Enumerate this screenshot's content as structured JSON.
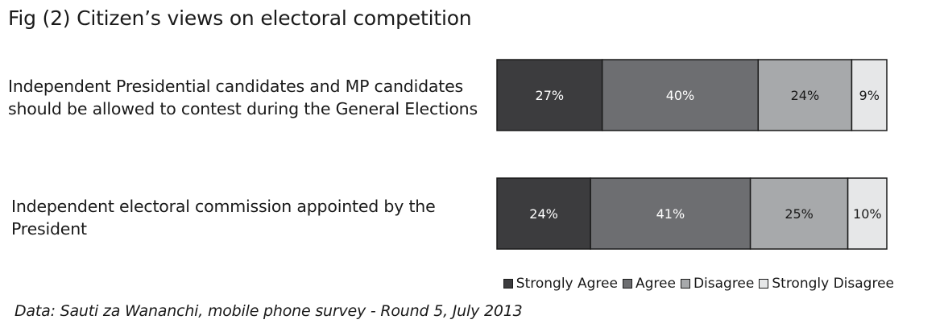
{
  "title": "Fig (2) Citizen’s views on electoral competition",
  "source": "Data: Sauti za Wananchi, mobile phone survey - Round 5, July 2013",
  "chart_data": {
    "type": "bar",
    "orientation": "horizontal",
    "stacked": true,
    "percent_stacked": true,
    "categories": [
      [
        "Independent Presidential candidates and MP candidates",
        "should be allowed to contest during the General Elections"
      ],
      [
        "Independent electoral commission appointed by the",
        "President"
      ]
    ],
    "series": [
      {
        "name": "Strongly Agree",
        "color": "#3c3c3e",
        "values": [
          27,
          24
        ],
        "labels": [
          "27%",
          "24%"
        ]
      },
      {
        "name": "Agree",
        "color": "#6d6e71",
        "values": [
          40,
          41
        ],
        "labels": [
          "40%",
          "41%"
        ]
      },
      {
        "name": "Disagree",
        "color": "#a7a9ab",
        "values": [
          24,
          25
        ],
        "labels": [
          "24%",
          "25%"
        ]
      },
      {
        "name": "Strongly Disagree",
        "color": "#e6e7e8",
        "values": [
          9,
          10
        ],
        "labels": [
          "9%",
          "10%"
        ]
      }
    ],
    "legend_position": "bottom-right",
    "grid": false
  }
}
